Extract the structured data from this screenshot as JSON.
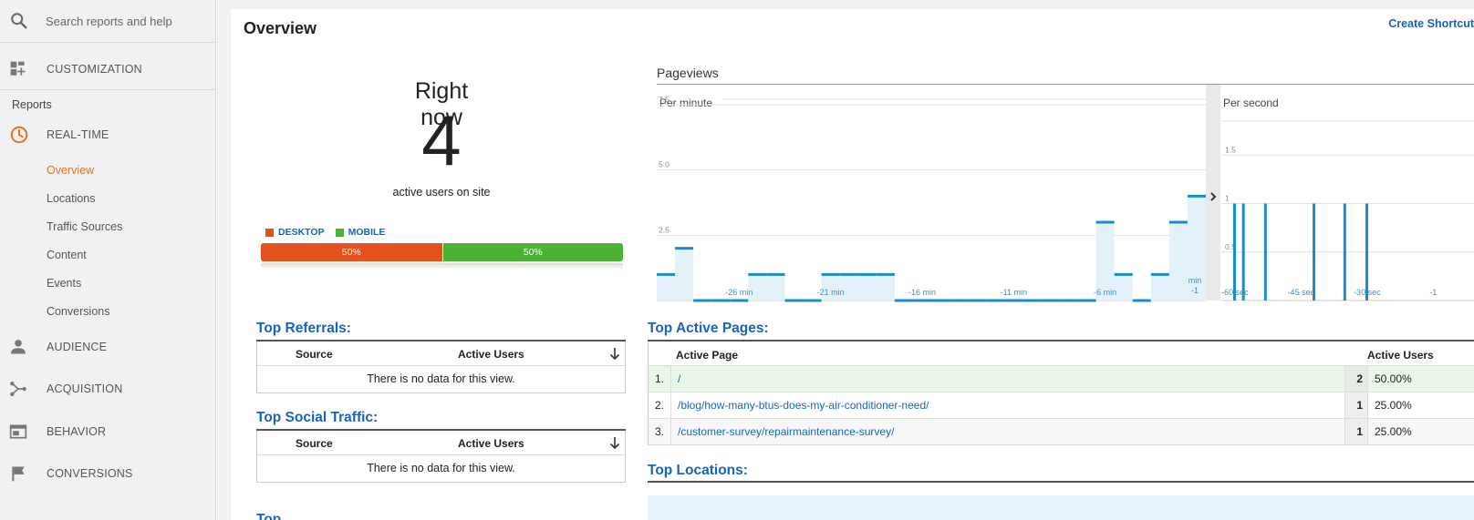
{
  "search": {
    "placeholder": "Search reports and help"
  },
  "sidebar": {
    "customization": "CUSTOMIZATION",
    "reports_header": "Reports",
    "realtime": "REAL-TIME",
    "realtime_items": [
      "Overview",
      "Locations",
      "Traffic Sources",
      "Content",
      "Events",
      "Conversions"
    ],
    "audience": "AUDIENCE",
    "acquisition": "ACQUISITION",
    "behavior": "BEHAVIOR",
    "conversions": "CONVERSIONS"
  },
  "header": {
    "title": "Overview",
    "shortcut": "Create Shortcut"
  },
  "rightnow": {
    "label": "Right now",
    "count": "4",
    "sublabel": "active users on site",
    "legend_desktop": "DESKTOP",
    "legend_mobile": "MOBILE",
    "desktop_pct": "50%",
    "mobile_pct": "50%",
    "desktop_share": 0.5,
    "mobile_share": 0.5
  },
  "colors": {
    "desktop": "#e6501c",
    "mobile": "#4cb236",
    "accent": "#1565c0",
    "active_nav": "#e8711c",
    "chart_line": "#1a8ccc",
    "chart_fill": "#e3f1f8"
  },
  "chart_data": [
    {
      "type": "area",
      "title": "Pageviews",
      "subtitle": "Per minute",
      "x_tick_labels": [
        "-26 min",
        "-21 min",
        "-16 min",
        "-11 min",
        "-6 min",
        "min -1"
      ],
      "y_tick_labels": [
        "2.5",
        "5.0",
        "7.5"
      ],
      "ylim": [
        0,
        7.5
      ],
      "x": [
        -30,
        -29,
        -28,
        -27,
        -26,
        -25,
        -24,
        -23,
        -22,
        -21,
        -20,
        -19,
        -18,
        -17,
        -16,
        -15,
        -14,
        -13,
        -12,
        -11,
        -10,
        -9,
        -8,
        -7,
        -6,
        -5,
        -4,
        -3,
        -2,
        -1
      ],
      "values": [
        1,
        2,
        0,
        0,
        0,
        1,
        1,
        0,
        0,
        1,
        1,
        1,
        1,
        0,
        0,
        0,
        0,
        0,
        0,
        0,
        0,
        0,
        0,
        0,
        3,
        1,
        0,
        1,
        3,
        4
      ]
    },
    {
      "type": "bar",
      "subtitle": "Per second",
      "x_tick_labels": [
        "-60 sec",
        "-45 sec",
        "-30 sec",
        "-1"
      ],
      "y_tick_labels": [
        "0.5",
        "1",
        "1.5"
      ],
      "ylim": [
        0,
        2
      ],
      "x": [
        -58,
        -56,
        -51,
        -40,
        -33,
        -28
      ],
      "values": [
        1,
        1,
        1,
        1,
        1,
        1
      ]
    }
  ],
  "referrals": {
    "heading": "Top Referrals:",
    "col_source": "Source",
    "col_users": "Active Users",
    "empty": "There is no data for this view."
  },
  "social": {
    "heading": "Top Social Traffic:",
    "col_source": "Source",
    "col_users": "Active Users",
    "empty": "There is no data for this view."
  },
  "keywords": {
    "heading": "Top Keywords:"
  },
  "active_pages": {
    "heading": "Top Active Pages:",
    "col_page": "Active Page",
    "col_users": "Active Users",
    "rows": [
      {
        "num": "1.",
        "page": "/",
        "count": "2",
        "pct": "50.00%"
      },
      {
        "num": "2.",
        "page": "/blog/how-many-btus-does-my-air-conditioner-need/",
        "count": "1",
        "pct": "25.00%"
      },
      {
        "num": "3.",
        "page": "/customer-survey/repairmaintenance-survey/",
        "count": "1",
        "pct": "25.00%"
      }
    ]
  },
  "locations": {
    "heading": "Top Locations:"
  }
}
